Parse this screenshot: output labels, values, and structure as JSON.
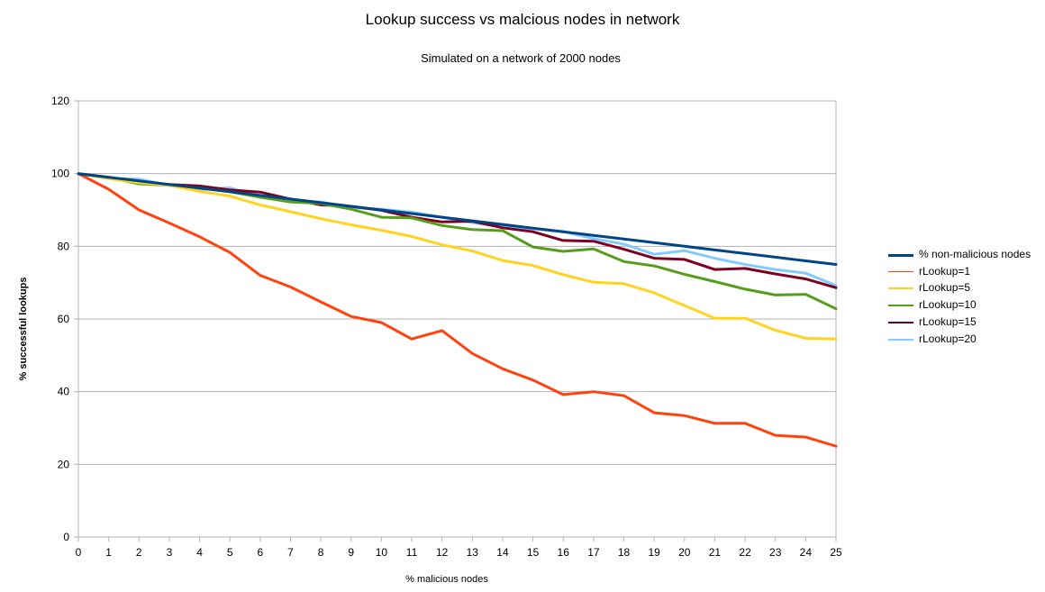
{
  "chart_data": {
    "type": "line",
    "title": "Lookup success vs malcious nodes in network",
    "subtitle": "Simulated on a network of 2000 nodes",
    "xlabel": "% malicious nodes",
    "ylabel": "% successful lookups",
    "ylim": [
      0,
      120
    ],
    "y_ticks": [
      0,
      20,
      40,
      60,
      80,
      100,
      120
    ],
    "x": [
      0,
      1,
      2,
      3,
      4,
      5,
      6,
      7,
      8,
      9,
      10,
      11,
      12,
      13,
      14,
      15,
      16,
      17,
      18,
      19,
      20,
      21,
      22,
      23,
      24,
      25
    ],
    "grid": "horizontal",
    "legend_position": "right",
    "series": [
      {
        "name": "% non-malicious nodes",
        "color": "#004586",
        "width": 3,
        "values": [
          100,
          99,
          98,
          97,
          96,
          95,
          94,
          93,
          92,
          91,
          90,
          89,
          88,
          87,
          86,
          85,
          84,
          83,
          82,
          81,
          80,
          79,
          78,
          77,
          76,
          75
        ]
      },
      {
        "name": "rLookup=1",
        "color": "#ff420e",
        "width": 3,
        "values": [
          100,
          95.7,
          90,
          86.4,
          82.6,
          78.3,
          72,
          68.8,
          64.7,
          60.7,
          59,
          54.5,
          56.8,
          50.5,
          46.3,
          43.2,
          39.2,
          40,
          38.9,
          34.2,
          33.4,
          31.3,
          31.3,
          28,
          27.5,
          25
        ]
      },
      {
        "name": "rLookup=5",
        "color": "#ffd320",
        "width": 3,
        "values": [
          100,
          98.6,
          97.5,
          96.8,
          95.1,
          93.8,
          91.4,
          89.5,
          87.6,
          85.9,
          84.4,
          82.7,
          80.4,
          78.7,
          76.1,
          74.7,
          72.2,
          70.1,
          69.7,
          67.2,
          63.7,
          60.2,
          60.2,
          56.9,
          54.7,
          54.5
        ]
      },
      {
        "name": "rLookup=10",
        "color": "#579d1c",
        "width": 3,
        "values": [
          100,
          98.9,
          97.2,
          96.8,
          96,
          95,
          93.5,
          92.2,
          91.8,
          90.2,
          88,
          87.8,
          85.7,
          84.6,
          84.3,
          79.8,
          78.6,
          79.3,
          75.8,
          74.6,
          72.3,
          70.3,
          68.2,
          66.6,
          66.8,
          62.8
        ]
      },
      {
        "name": "rLookup=15",
        "color": "#7e0021",
        "width": 3,
        "values": [
          100,
          99,
          97.6,
          97,
          96.6,
          95.5,
          94.9,
          93,
          91.4,
          91,
          89.9,
          88,
          86.7,
          86.9,
          85.1,
          84,
          81.6,
          81.4,
          79.2,
          76.7,
          76.4,
          73.6,
          73.9,
          72.4,
          71,
          68.6
        ]
      },
      {
        "name": "rLookup=20",
        "color": "#83caff",
        "width": 3,
        "values": [
          100,
          98.7,
          98.5,
          96.7,
          95.6,
          96.1,
          93.5,
          92.5,
          92.2,
          90.7,
          90.2,
          89.4,
          88,
          86.5,
          85.4,
          84.8,
          84.1,
          82.1,
          80.6,
          77.8,
          78.8,
          76.7,
          75,
          73.6,
          72.6,
          69.2
        ]
      }
    ]
  }
}
